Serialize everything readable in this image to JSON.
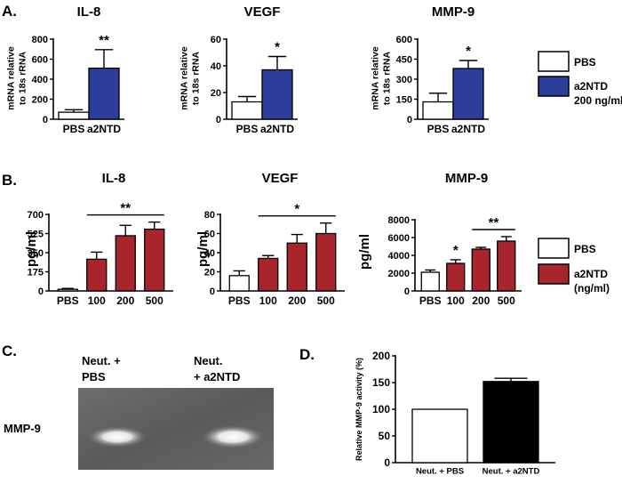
{
  "figure": {
    "panel_labels": {
      "A": "A.",
      "B": "B.",
      "C": "C.",
      "D": "D."
    },
    "colors": {
      "pbs_fill": "#ffffff",
      "blue": "#2d3d9c",
      "red": "#a8262b",
      "black": "#000000"
    }
  },
  "legend_a": {
    "pbs": "PBS",
    "treat_line1": "a2NTD",
    "treat_line2": "200 ng/ml"
  },
  "legend_b": {
    "pbs": "PBS",
    "treat_line1": "a2NTD",
    "treat_line2": "(ng/ml)"
  },
  "gel": {
    "lane1_line1": "Neut. +",
    "lane1_line2": "PBS",
    "lane2_line1": "Neut.",
    "lane2_line2": "+ a2NTD",
    "band_label": "MMP-9"
  },
  "chart_data": [
    {
      "id": "a-il8",
      "type": "bar",
      "title": "IL-8",
      "ylabel": [
        "mRNA relative",
        "to 18s rRNA"
      ],
      "categories": [
        "PBS",
        "a2NTD"
      ],
      "values": [
        70,
        510
      ],
      "errors": [
        25,
        185
      ],
      "ylim": [
        0,
        800
      ],
      "yticks": [
        0,
        200,
        400,
        600,
        800
      ],
      "fills": [
        "pbs",
        "blue"
      ],
      "annotations": [
        {
          "text": "**",
          "over": 1
        }
      ]
    },
    {
      "id": "a-vegf",
      "type": "bar",
      "title": "VEGF",
      "ylabel": [
        "mRNA relative",
        "to 18s rRNA"
      ],
      "categories": [
        "PBS",
        "a2NTD"
      ],
      "values": [
        13,
        37
      ],
      "errors": [
        4,
        10
      ],
      "ylim": [
        0,
        60
      ],
      "yticks": [
        0,
        20,
        40,
        60
      ],
      "fills": [
        "pbs",
        "blue"
      ],
      "annotations": [
        {
          "text": "*",
          "over": 1
        }
      ]
    },
    {
      "id": "a-mmp9",
      "type": "bar",
      "title": "MMP-9",
      "ylabel": [
        "mRNA relative",
        "to 18s rRNA"
      ],
      "categories": [
        "PBS",
        "a2NTD"
      ],
      "values": [
        130,
        380
      ],
      "errors": [
        65,
        60
      ],
      "ylim": [
        0,
        600
      ],
      "yticks": [
        0,
        150,
        300,
        450,
        600
      ],
      "fills": [
        "pbs",
        "blue"
      ],
      "annotations": [
        {
          "text": "*",
          "over": 1
        }
      ]
    },
    {
      "id": "b-il8",
      "type": "bar",
      "title": "IL-8",
      "ylabel": [
        "pg/ml"
      ],
      "categories": [
        "PBS",
        "100",
        "200",
        "500"
      ],
      "values": [
        15,
        290,
        505,
        565
      ],
      "errors": [
        8,
        65,
        95,
        65
      ],
      "ylim": [
        0,
        700
      ],
      "yticks": [
        0,
        175,
        350,
        525,
        700
      ],
      "fills": [
        "pbs",
        "red",
        "red",
        "red"
      ],
      "annotations": [
        {
          "text": "**",
          "from": 1,
          "to": 3
        }
      ]
    },
    {
      "id": "b-vegf",
      "type": "bar",
      "title": "VEGF",
      "ylabel": [
        "pg/ml"
      ],
      "categories": [
        "PBS",
        "100",
        "200",
        "500"
      ],
      "values": [
        16,
        34,
        50,
        60
      ],
      "errors": [
        5,
        3,
        9,
        11
      ],
      "ylim": [
        0,
        80
      ],
      "yticks": [
        0,
        20,
        40,
        60,
        80
      ],
      "fills": [
        "pbs",
        "red",
        "red",
        "red"
      ],
      "annotations": [
        {
          "text": "*",
          "from": 1,
          "to": 3
        }
      ]
    },
    {
      "id": "b-mmp9",
      "type": "bar",
      "title": "MMP-9",
      "ylabel": [
        "pg/ml"
      ],
      "categories": [
        "PBS",
        "100",
        "200",
        "500"
      ],
      "values": [
        2100,
        3100,
        4700,
        5600
      ],
      "errors": [
        250,
        400,
        200,
        500
      ],
      "ylim": [
        0,
        8000
      ],
      "yticks": [
        0,
        2000,
        4000,
        6000,
        8000
      ],
      "fills": [
        "pbs",
        "red",
        "red",
        "red"
      ],
      "annotations": [
        {
          "text": "*",
          "over": 1
        },
        {
          "text": "**",
          "from": 2,
          "to": 3
        }
      ]
    },
    {
      "id": "d-activity",
      "type": "bar",
      "title": "",
      "ylabel": [
        "Relative MMP-9 activity (%)"
      ],
      "categories": [
        "Neut. + PBS",
        "Neut. + a2NTD"
      ],
      "values": [
        100,
        152
      ],
      "errors": [
        0,
        6
      ],
      "ylim": [
        0,
        200
      ],
      "yticks": [
        0,
        50,
        100,
        150,
        200
      ],
      "fills": [
        "pbs",
        "black"
      ],
      "annotations": []
    }
  ]
}
